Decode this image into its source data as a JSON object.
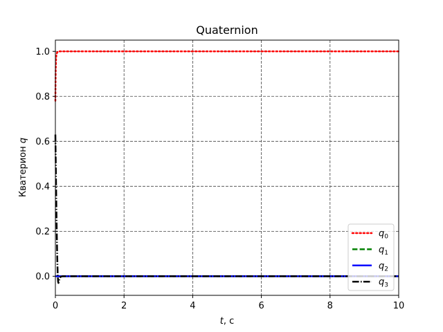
{
  "chart_data": {
    "type": "line",
    "title": "Quaternion",
    "xlabel": {
      "symbol": "t",
      "unit": ", c"
    },
    "ylabel": {
      "text": "Кватерион ",
      "symbol": "q"
    },
    "xlim": [
      0,
      10
    ],
    "ylim": [
      -0.085,
      1.05
    ],
    "xticks": [
      0,
      2,
      4,
      6,
      8,
      10
    ],
    "yticks": [
      0.0,
      0.2,
      0.4,
      0.6,
      0.8,
      1.0
    ],
    "xtick_labels": [
      "0",
      "2",
      "4",
      "6",
      "8",
      "10"
    ],
    "ytick_labels": [
      "0.0",
      "0.2",
      "0.4",
      "0.6",
      "0.8",
      "1.0"
    ],
    "grid": true,
    "legend_position": "lower-right",
    "series": [
      {
        "name": "q0",
        "label_base": "q",
        "label_sub": "0",
        "color": "#ff0000",
        "style": "dotted",
        "x": [
          0,
          0.005,
          0.01,
          0.02,
          0.03,
          0.05,
          0.08,
          0.1,
          0.15,
          0.2,
          1,
          10
        ],
        "y": [
          0.78,
          0.86,
          0.92,
          0.965,
          0.985,
          0.995,
          0.999,
          1.0,
          1.0,
          1.0,
          1.0,
          1.0
        ]
      },
      {
        "name": "q1",
        "label_base": "q",
        "label_sub": "1",
        "color": "#008000",
        "style": "dashed",
        "x": [
          0,
          0.05,
          0.1,
          0.2,
          10
        ],
        "y": [
          0.0,
          0.0,
          0.0,
          0.0,
          0.0
        ]
      },
      {
        "name": "q2",
        "label_base": "q",
        "label_sub": "2",
        "color": "#0000ff",
        "style": "solid",
        "x": [
          0,
          0.05,
          0.1,
          0.2,
          10
        ],
        "y": [
          0.0,
          0.0,
          0.0,
          0.0,
          0.0
        ]
      },
      {
        "name": "q3",
        "label_base": "q",
        "label_sub": "3",
        "color": "#000000",
        "style": "dashdot",
        "x": [
          0,
          0.01,
          0.02,
          0.03,
          0.04,
          0.05,
          0.06,
          0.07,
          0.08,
          0.09,
          0.1,
          0.12,
          0.15,
          0.2,
          0.3,
          10
        ],
        "y": [
          0.63,
          0.52,
          0.41,
          0.3,
          0.2,
          0.12,
          0.05,
          0.0,
          -0.025,
          -0.03,
          -0.025,
          -0.012,
          -0.003,
          0.0,
          0.0,
          0.0
        ]
      }
    ]
  }
}
